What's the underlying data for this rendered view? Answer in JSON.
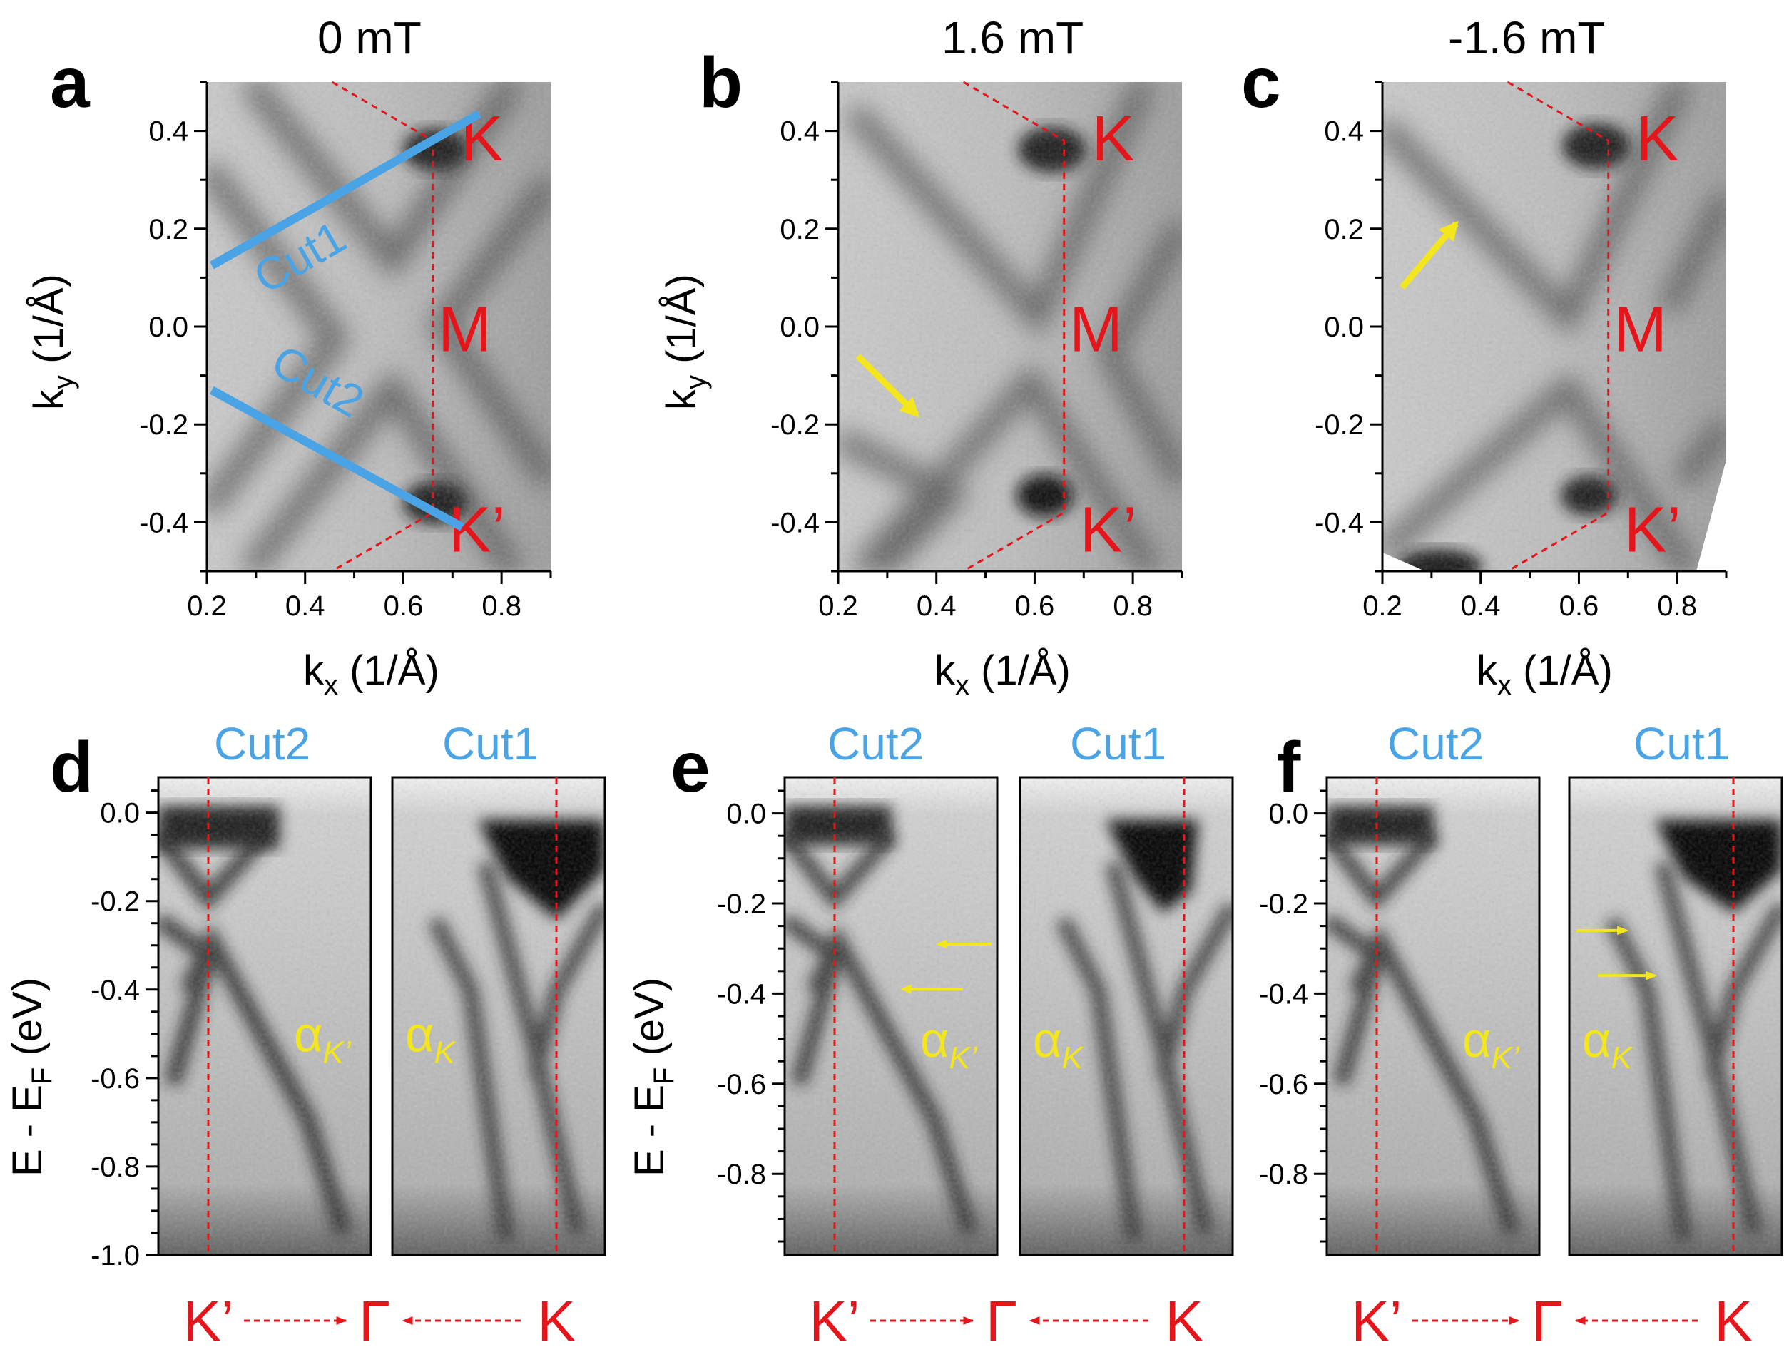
{
  "figure": {
    "colors": {
      "red": "#e4161b",
      "cut_blue": "#4aa3e4",
      "yellow": "#f3e61d"
    },
    "top_panels": [
      {
        "letter": "a",
        "field": "0 mT"
      },
      {
        "letter": "b",
        "field": "1.6 mT"
      },
      {
        "letter": "c",
        "field": "-1.6 mT"
      }
    ],
    "top_axis": {
      "xlabel_main": "k",
      "xlabel_sub": "x",
      "xlabel_unit": " (1/Å)",
      "ylabel_main": "k",
      "ylabel_sub": "y",
      "ylabel_unit": " (1/Å)",
      "xticks": [
        "0.2",
        "0.4",
        "0.6",
        "0.8"
      ],
      "yticks": [
        "0.4",
        "0.2",
        "0.0",
        "-0.2",
        "-0.4"
      ]
    },
    "bz_labels": {
      "K": "K",
      "M": "M",
      "Kp": "K’"
    },
    "cut_labels": {
      "cut1": "Cut1",
      "cut2": "Cut2"
    },
    "bottom_panels": [
      {
        "letter": "d",
        "cut_left": "Cut2",
        "cut_right": "Cut1",
        "alpha_left": "α",
        "alpha_left_sub": "K’",
        "alpha_right": "α",
        "alpha_right_sub": "K"
      },
      {
        "letter": "e",
        "cut_left": "Cut2",
        "cut_right": "Cut1",
        "alpha_left": "α",
        "alpha_left_sub": "K’",
        "alpha_right": "α",
        "alpha_right_sub": "K"
      },
      {
        "letter": "f",
        "cut_left": "Cut2",
        "cut_right": "Cut1",
        "alpha_left": "α",
        "alpha_left_sub": "K’",
        "alpha_right": "α",
        "alpha_right_sub": "K"
      }
    ],
    "bottom_axis": {
      "ylabel_main": "E - E",
      "ylabel_sub": "F",
      "ylabel_unit": " (eV)",
      "yticks_d": [
        "0.0",
        "-0.2",
        "-0.4",
        "-0.6",
        "-0.8",
        "-1.0"
      ],
      "yticks_ef": [
        "0.0",
        "-0.2",
        "-0.4",
        "-0.6",
        "-0.8"
      ]
    },
    "path_labels": {
      "start": "K’",
      "mid": "Γ",
      "end": "K"
    }
  },
  "chart_data": [
    {
      "type": "heatmap",
      "panel": "a",
      "title": "0 mT",
      "xlabel": "kx (1/Å)",
      "ylabel": "ky (1/Å)",
      "xlim": [
        0.2,
        0.9
      ],
      "ylim": [
        -0.5,
        0.5
      ],
      "annotations": [
        "K at (0.66, 0.38)",
        "M at (0.66, 0.0)",
        "K’ at (0.66, -0.38)",
        "Cut1 line (0.21,0.12)-(0.75,0.43)",
        "Cut2 line (0.21,-0.13)-(0.72,-0.41)"
      ]
    },
    {
      "type": "heatmap",
      "panel": "b",
      "title": "1.6 mT",
      "xlabel": "kx (1/Å)",
      "ylabel": "ky (1/Å)",
      "xlim": [
        0.2,
        0.9
      ],
      "ylim": [
        -0.5,
        0.5
      ],
      "annotations": [
        "yellow arrow pointing to (0.38, -0.18)"
      ]
    },
    {
      "type": "heatmap",
      "panel": "c",
      "title": "-1.6 mT",
      "xlabel": "kx (1/Å)",
      "ylabel": "ky (1/Å)",
      "xlim": [
        0.2,
        0.9
      ],
      "ylim": [
        -0.5,
        0.5
      ],
      "annotations": [
        "yellow arrow pointing to (0.34, 0.21)"
      ]
    },
    {
      "type": "heatmap",
      "panel": "d",
      "ylabel": "E - EF (eV)",
      "ylim": [
        -1.0,
        0.08
      ],
      "path": [
        "K’",
        "Γ",
        "K"
      ]
    },
    {
      "type": "heatmap",
      "panel": "e",
      "ylabel": "E - EF (eV)",
      "ylim": [
        -0.98,
        0.08
      ],
      "annotations": [
        "arrows at -0.29 eV and -0.39 eV in Cut2"
      ]
    },
    {
      "type": "heatmap",
      "panel": "f",
      "ylabel": "E - EF (eV)",
      "ylim": [
        -0.98,
        0.08
      ],
      "annotations": [
        "arrows at -0.26 eV and -0.36 eV in Cut1"
      ]
    }
  ]
}
